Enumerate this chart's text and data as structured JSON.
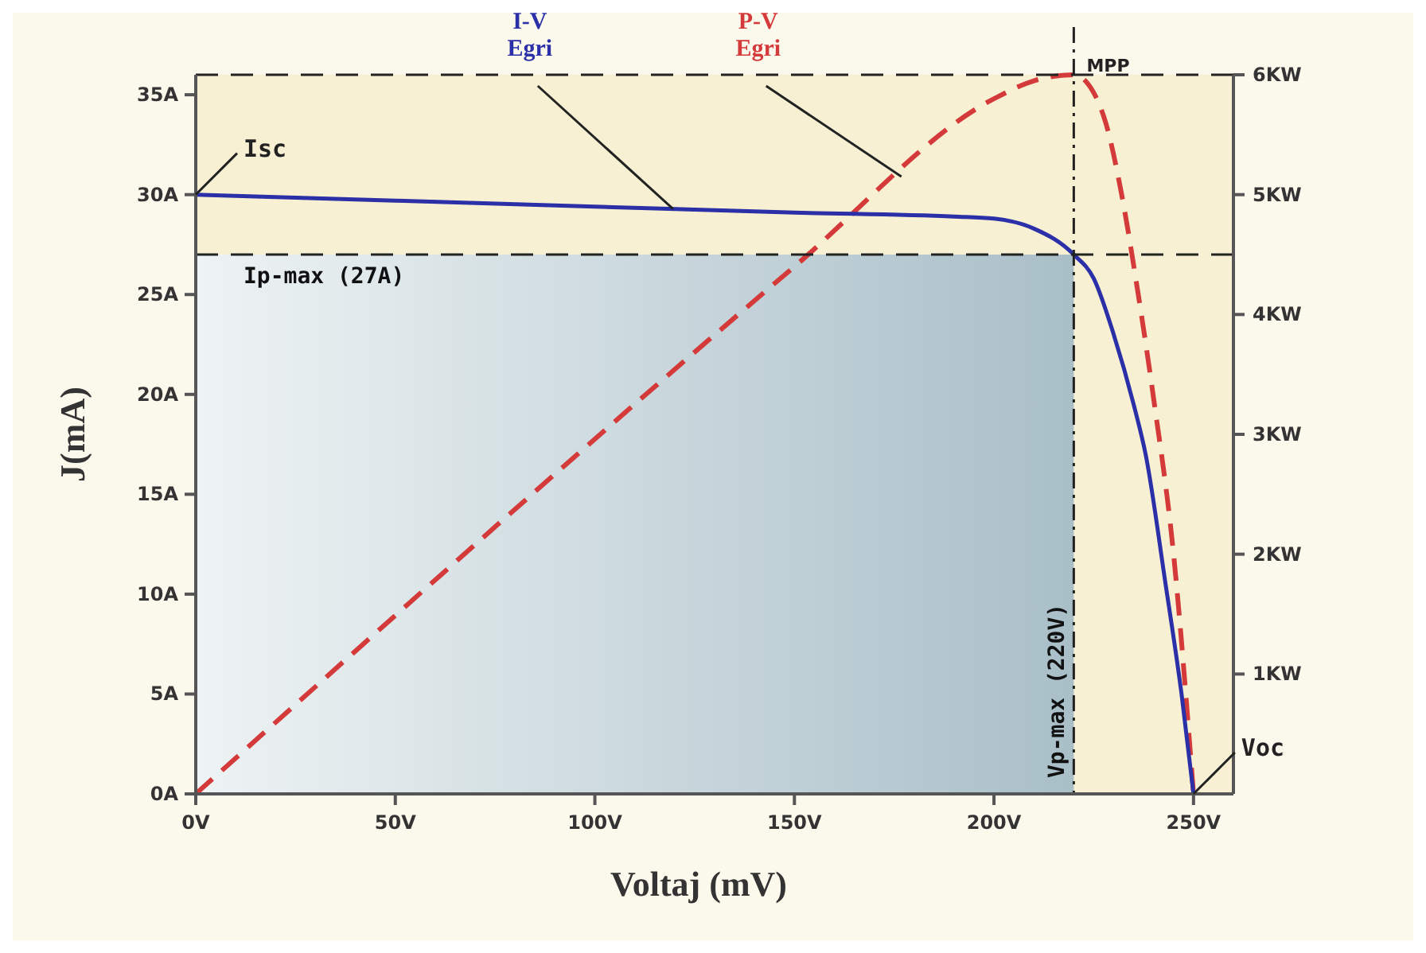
{
  "chart_data": {
    "type": "line",
    "xlabel": "Voltaj (mV)",
    "ylabel": "J(mA)",
    "xlim": [
      0,
      260
    ],
    "ylim": [
      0,
      36
    ],
    "y2lim": [
      0,
      6
    ],
    "xticks": [
      {
        "value": 0,
        "label": "0V"
      },
      {
        "value": 50,
        "label": "50V"
      },
      {
        "value": 100,
        "label": "100V"
      },
      {
        "value": 150,
        "label": "150V"
      },
      {
        "value": 200,
        "label": "200V"
      },
      {
        "value": 250,
        "label": "250V"
      }
    ],
    "yticks": [
      {
        "value": 0,
        "label": "0A"
      },
      {
        "value": 5,
        "label": "5A"
      },
      {
        "value": 10,
        "label": "10A"
      },
      {
        "value": 15,
        "label": "15A"
      },
      {
        "value": 20,
        "label": "20A"
      },
      {
        "value": 25,
        "label": "25A"
      },
      {
        "value": 30,
        "label": "30A"
      },
      {
        "value": 35,
        "label": "35A"
      }
    ],
    "y2ticks": [
      {
        "value": 1,
        "label": "1KW"
      },
      {
        "value": 2,
        "label": "2KW"
      },
      {
        "value": 3,
        "label": "3KW"
      },
      {
        "value": 4,
        "label": "4KW"
      },
      {
        "value": 5,
        "label": "5KW"
      },
      {
        "value": 6,
        "label": "6KW"
      }
    ],
    "grid": false,
    "marker": "none",
    "series": [
      {
        "type": "area",
        "color": "#a9bfc8",
        "x": [
          0,
          220
        ],
        "values": [
          27,
          27
        ]
      },
      {
        "name": "P-V Egri",
        "axis": "y2",
        "color": "#d43a3a",
        "line_style": "dashed",
        "x": [
          0,
          150,
          200,
          210,
          220,
          225,
          228,
          232,
          236,
          240,
          245,
          250
        ],
        "values": [
          0,
          4.4,
          5.8,
          5.95,
          6,
          5.85,
          5.6,
          5.0,
          4.2,
          3.3,
          2.0,
          0
        ]
      },
      {
        "name": "I-V Egri",
        "color": "#2b2fa8",
        "line_style": "solid",
        "x": [
          0,
          50,
          100,
          150,
          190,
          200,
          210,
          220,
          225,
          230,
          235,
          238,
          243,
          247,
          250
        ],
        "values": [
          30,
          29.7,
          29.4,
          29.1,
          28.9,
          28.8,
          28.3,
          27,
          25.8,
          23,
          19.5,
          17,
          10.5,
          5,
          0
        ]
      }
    ],
    "ref_lines": [
      {
        "axis": "y",
        "value": 27,
        "label": "Ip-max (27A)",
        "line_style": "dashed"
      },
      {
        "axis": "x",
        "value": 220,
        "label": "Vp-max (220V)",
        "line_style": "dashdot"
      },
      {
        "axis": "y2",
        "value": 6,
        "line_style": "dashed"
      }
    ],
    "annotations": [
      {
        "text": "Isc",
        "x": 0,
        "y": 30
      },
      {
        "text": "Voc",
        "x": 250,
        "y": 0
      },
      {
        "text": "MPP",
        "x": 220,
        "y": 36
      }
    ]
  }
}
